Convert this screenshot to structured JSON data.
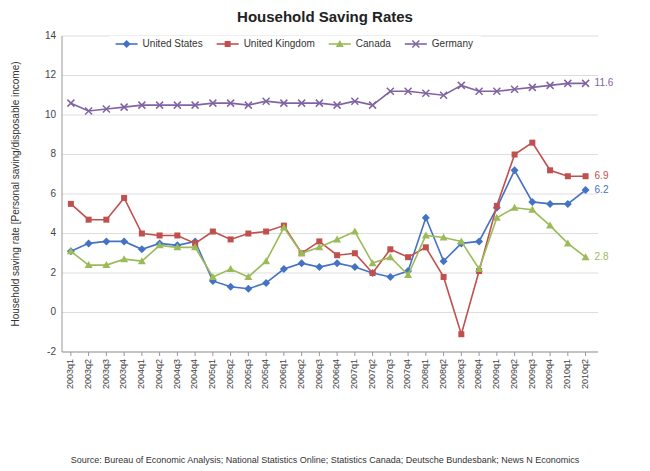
{
  "chart_data": {
    "type": "line",
    "title": "Household Saving Rates",
    "y_label": "Household saving rate [Personal saving/disposable income)",
    "source": "Source: Bureau of Economic Analysis; National Statistics Online; Statistics Canada; Deutsche Bundesbank; News N Economics",
    "categories": [
      "2003q1",
      "2003q2",
      "2003q3",
      "2003q4",
      "2004q1",
      "2004q2",
      "2004q3",
      "2004q4",
      "2005q1",
      "2005q2",
      "2005q3",
      "2005q4",
      "2006q1",
      "2006q2",
      "2006q3",
      "2006q4",
      "2007q1",
      "2007q2",
      "2007q3",
      "2007q4",
      "2008q1",
      "2008q2",
      "2008q3",
      "2008q4",
      "2009q1",
      "2009q2",
      "2009q3",
      "2009q4",
      "2010q1",
      "2010q2"
    ],
    "series": [
      {
        "name": "United States",
        "color": "#4472C4",
        "marker": "diamond",
        "values": [
          3.1,
          3.5,
          3.6,
          3.6,
          3.2,
          3.5,
          3.4,
          3.6,
          1.6,
          1.3,
          1.2,
          1.5,
          2.2,
          2.5,
          2.3,
          2.5,
          2.3,
          2.0,
          1.8,
          2.1,
          4.8,
          2.6,
          3.5,
          3.6,
          5.3,
          7.2,
          5.6,
          5.5,
          5.5,
          6.2
        ]
      },
      {
        "name": "United Kingdom",
        "color": "#C0504D",
        "marker": "square",
        "values": [
          5.5,
          4.7,
          4.7,
          5.8,
          4.0,
          3.9,
          3.9,
          3.5,
          4.1,
          3.7,
          4.0,
          4.1,
          4.4,
          3.0,
          3.6,
          2.9,
          3.0,
          2.0,
          3.2,
          2.8,
          3.3,
          1.8,
          -1.1,
          2.1,
          5.4,
          8.0,
          8.6,
          7.2,
          6.9,
          6.9
        ]
      },
      {
        "name": "Canada",
        "color": "#9BBB59",
        "marker": "triangle",
        "values": [
          3.1,
          2.4,
          2.4,
          2.7,
          2.6,
          3.4,
          3.3,
          3.3,
          1.8,
          2.2,
          1.8,
          2.6,
          4.3,
          3.0,
          3.3,
          3.7,
          4.1,
          2.5,
          2.8,
          1.9,
          3.9,
          3.8,
          3.6,
          2.2,
          4.8,
          5.3,
          5.2,
          4.4,
          3.5,
          2.8
        ]
      },
      {
        "name": "Germany",
        "color": "#8064A2",
        "marker": "x",
        "values": [
          10.6,
          10.2,
          10.3,
          10.4,
          10.5,
          10.5,
          10.5,
          10.5,
          10.6,
          10.6,
          10.5,
          10.7,
          10.6,
          10.6,
          10.6,
          10.5,
          10.7,
          10.5,
          11.2,
          11.2,
          11.1,
          11.0,
          11.5,
          11.2,
          11.2,
          11.3,
          11.4,
          11.5,
          11.6,
          11.6
        ]
      }
    ],
    "annotations": [
      {
        "text": "6.2",
        "x": "2010q2",
        "y": 6.2,
        "series": "United States"
      },
      {
        "text": "6.9",
        "x": "2010q2",
        "y": 6.9,
        "series": "United Kingdom"
      },
      {
        "text": "2.8",
        "x": "2010q2",
        "y": 2.8,
        "series": "Canada"
      },
      {
        "text": "11.6",
        "x": "2010q2",
        "y": 11.6,
        "series": "Germany"
      }
    ],
    "ylim": [
      -2,
      14
    ],
    "yticks": [
      -2,
      0,
      2,
      4,
      6,
      8,
      10,
      12,
      14
    ],
    "grid": true,
    "legend": "top"
  }
}
